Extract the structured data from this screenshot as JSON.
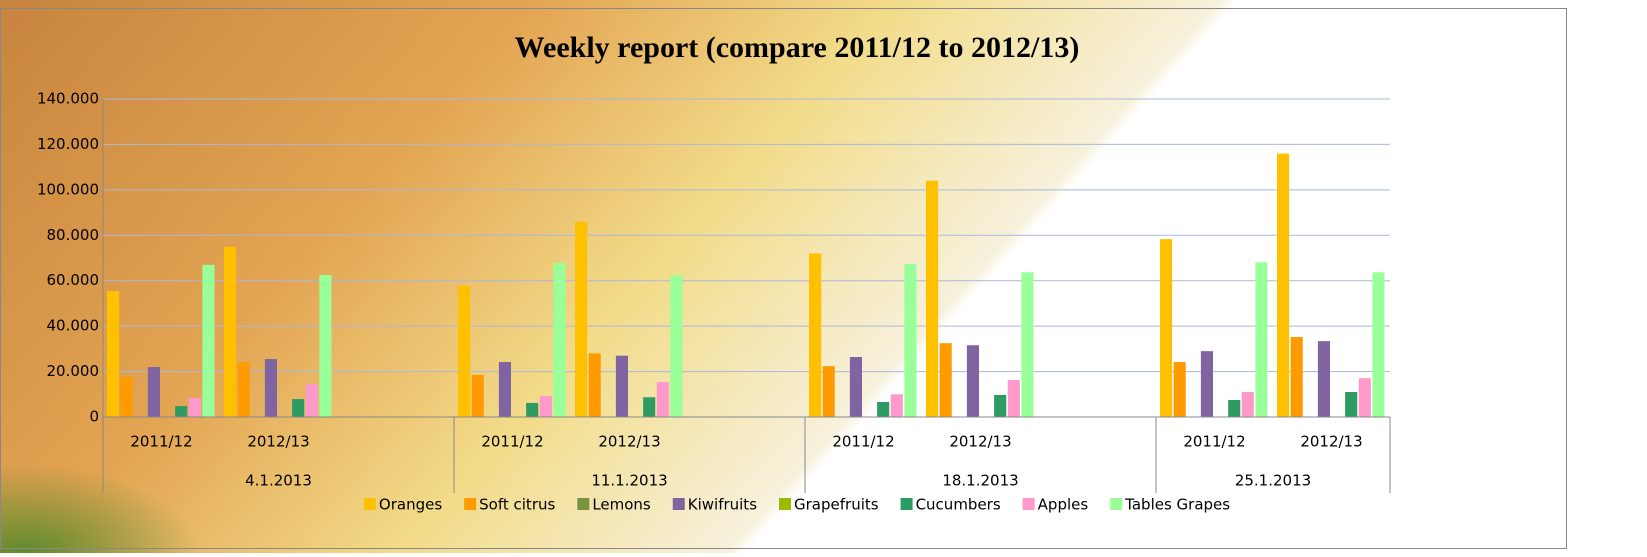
{
  "chart_data": {
    "type": "bar",
    "title": "Weekly report (compare 2011/12 to 2012/13)",
    "categories": [
      "2011/12",
      "2012/13",
      null,
      "2011/12",
      "2012/13",
      null,
      "2011/12",
      "2012/13",
      null,
      "2011/12",
      "2012/13"
    ],
    "groups": [
      {
        "label": "4.1.2013",
        "size": 3
      },
      {
        "label": "11.1.2013",
        "size": 3
      },
      {
        "label": "18.1.2013",
        "size": 3
      },
      {
        "label": "25.1.2013",
        "size": 2
      }
    ],
    "series": [
      {
        "name": "Oranges",
        "color": "#ffc000",
        "values": [
          55500,
          74900,
          null,
          57700,
          86000,
          null,
          72000,
          104000,
          null,
          78300,
          116000
        ]
      },
      {
        "name": "Soft citrus",
        "color": "#ff9a00",
        "values": [
          17600,
          24200,
          null,
          18500,
          28000,
          null,
          22400,
          32500,
          null,
          24200,
          35200
        ]
      },
      {
        "name": "Lemons",
        "color": "#77933c",
        "values": [
          0,
          0,
          null,
          0,
          0,
          null,
          0,
          0,
          null,
          0,
          0
        ]
      },
      {
        "name": "Kiwifruits",
        "color": "#8064a2",
        "values": [
          22000,
          25500,
          null,
          24200,
          27000,
          null,
          26400,
          31600,
          null,
          29000,
          33400
        ]
      },
      {
        "name": "Grapefruits",
        "color": "#9bbb00",
        "values": [
          0,
          0,
          null,
          0,
          0,
          null,
          0,
          0,
          null,
          0,
          0
        ]
      },
      {
        "name": "Cucumbers",
        "color": "#2e9b63",
        "values": [
          4800,
          7900,
          null,
          6200,
          8700,
          null,
          6600,
          9700,
          null,
          7500,
          11000
        ]
      },
      {
        "name": "Apples",
        "color": "#ff99cc",
        "values": [
          8400,
          14500,
          null,
          9200,
          15400,
          null,
          10000,
          16300,
          null,
          11000,
          17100
        ]
      },
      {
        "name": "Tables Grapes",
        "color": "#99ff99",
        "values": [
          67000,
          62500,
          null,
          67800,
          62500,
          null,
          67300,
          63700,
          null,
          68100,
          63700
        ]
      }
    ],
    "ylim": [
      0,
      140000
    ],
    "yticks": [
      0,
      {
        "value": 20000,
        "label": "20.000"
      },
      {
        "value": 40000,
        "label": "40.000"
      },
      {
        "value": 60000,
        "label": "60.000"
      },
      {
        "value": 80000,
        "label": "80.000"
      },
      {
        "value": 100000,
        "label": "100.000"
      },
      {
        "value": 120000,
        "label": "120.000"
      },
      {
        "value": 140000,
        "label": "140.000"
      }
    ],
    "grid": true
  }
}
